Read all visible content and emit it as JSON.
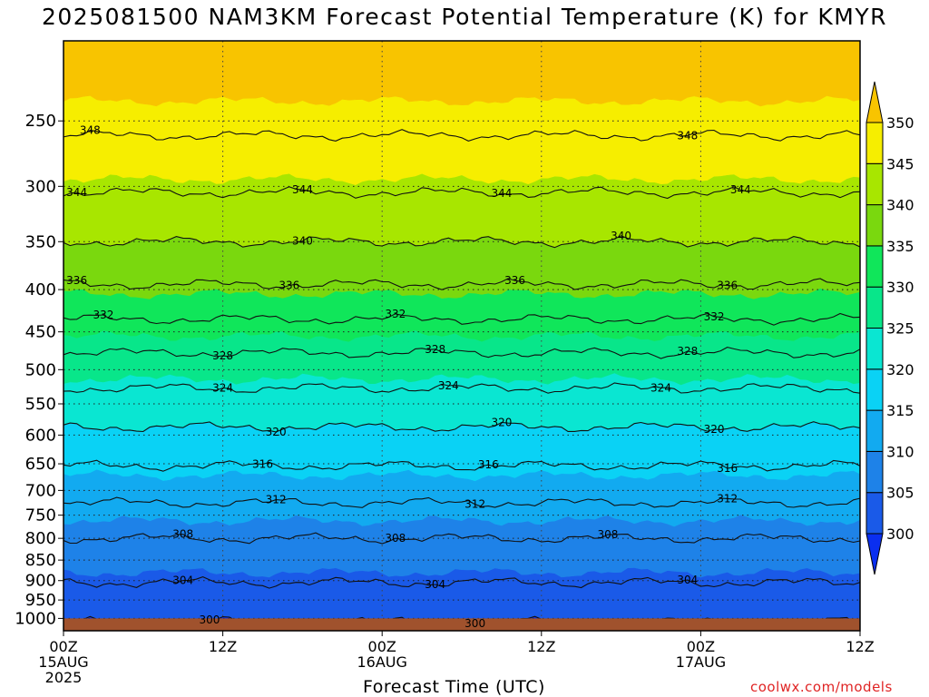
{
  "title": "2025081500 NAM3KM Forecast Potential Temperature (K) for KMYR",
  "credit": "coolwx.com/models",
  "chart_data": {
    "type": "contour",
    "title": "2025081500 NAM3KM Forecast Potential Temperature (K) for KMYR",
    "xlabel": "Forecast Time (UTC)",
    "ylabel": "",
    "units": "K",
    "x_ticks": [
      {
        "label": "00Z",
        "sub": [
          "15AUG",
          "2025"
        ],
        "hour": 0
      },
      {
        "label": "12Z",
        "sub": [],
        "hour": 12
      },
      {
        "label": "00Z",
        "sub": [
          "16AUG"
        ],
        "hour": 24
      },
      {
        "label": "12Z",
        "sub": [],
        "hour": 36
      },
      {
        "label": "00Z",
        "sub": [
          "17AUG"
        ],
        "hour": 48
      },
      {
        "label": "12Z",
        "sub": [],
        "hour": 60
      }
    ],
    "x_range_hours": [
      0,
      60
    ],
    "y_pressure_levels_hPa": [
      1000,
      950,
      900,
      850,
      800,
      750,
      700,
      650,
      600,
      550,
      500,
      450,
      400,
      350,
      300,
      250
    ],
    "y_range_hPa": [
      1035,
      200
    ],
    "colorbar": {
      "labels": [
        300,
        305,
        310,
        315,
        320,
        325,
        330,
        335,
        340,
        345,
        350
      ],
      "colors": [
        "#0a2ff0",
        "#1a5ae8",
        "#1e82e8",
        "#12aaf0",
        "#0ad2f5",
        "#0ae6d2",
        "#08e68a",
        "#10e65a",
        "#7ad80e",
        "#a8e600",
        "#f6ee00",
        "#f8c400"
      ],
      "extend": "both"
    },
    "contour_interval": 4,
    "contour_levels": [
      300,
      304,
      308,
      312,
      316,
      320,
      324,
      328,
      332,
      336,
      340,
      344,
      348
    ],
    "profile_pressures": [
      1030,
      1000,
      950,
      900,
      850,
      800,
      750,
      700,
      650,
      600,
      550,
      500,
      450,
      400,
      350,
      300,
      250,
      200
    ],
    "profile_theta": [
      299.6,
      300.2,
      302.2,
      304.2,
      306.2,
      308.0,
      310.6,
      313.4,
      316.2,
      319.2,
      322.3,
      326.0,
      330.5,
      335.5,
      340.0,
      344.5,
      349.0,
      353.0
    ],
    "contour_labels": [
      {
        "level": 348,
        "hours": [
          2,
          47
        ]
      },
      {
        "level": 344,
        "hours": [
          1,
          18,
          33,
          51
        ]
      },
      {
        "level": 340,
        "hours": [
          18,
          42
        ]
      },
      {
        "level": 336,
        "hours": [
          1,
          17,
          34,
          50
        ]
      },
      {
        "level": 332,
        "hours": [
          3,
          25,
          49
        ]
      },
      {
        "level": 328,
        "hours": [
          12,
          28,
          47
        ]
      },
      {
        "level": 324,
        "hours": [
          12,
          29,
          45
        ]
      },
      {
        "level": 320,
        "hours": [
          16,
          33,
          49
        ]
      },
      {
        "level": 316,
        "hours": [
          15,
          32,
          50
        ]
      },
      {
        "level": 312,
        "hours": [
          16,
          31,
          50
        ]
      },
      {
        "level": 308,
        "hours": [
          9,
          25,
          41
        ]
      },
      {
        "level": 304,
        "hours": [
          9,
          28,
          47
        ]
      },
      {
        "level": 300,
        "hours": [
          11,
          31
        ]
      }
    ],
    "grid": true,
    "ground": {
      "from_hPa": 1000,
      "color": "#a0522d"
    }
  }
}
